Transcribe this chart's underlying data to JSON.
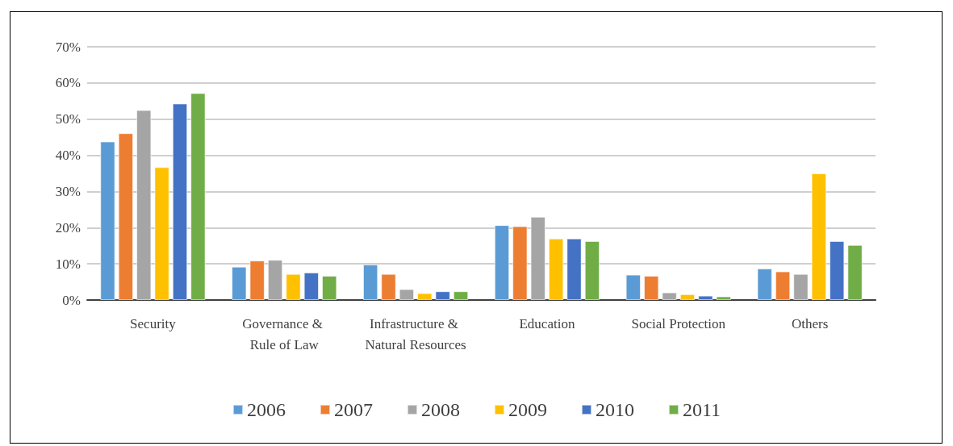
{
  "chart_data": {
    "type": "bar",
    "categories": [
      "Security",
      "Governance & Rule of Law",
      "Infrastructure & Natural Resources",
      "Education",
      "Social Protection",
      "Others"
    ],
    "series": [
      {
        "name": "2006",
        "color": "#5b9bd5",
        "values": [
          43.8,
          9.2,
          9.8,
          20.7,
          7.0,
          8.7
        ]
      },
      {
        "name": "2007",
        "color": "#ed7d31",
        "values": [
          46.1,
          10.9,
          7.2,
          20.4,
          6.7,
          7.9
        ]
      },
      {
        "name": "2008",
        "color": "#a5a5a5",
        "values": [
          52.5,
          11.1,
          3.0,
          23.0,
          2.1,
          7.2
        ]
      },
      {
        "name": "2009",
        "color": "#ffc000",
        "values": [
          36.7,
          7.2,
          1.9,
          17.0,
          1.6,
          35.0
        ]
      },
      {
        "name": "2010",
        "color": "#4472c4",
        "values": [
          54.3,
          7.6,
          2.4,
          17.0,
          1.2,
          16.3
        ]
      },
      {
        "name": "2011",
        "color": "#70ad47",
        "values": [
          57.2,
          6.7,
          2.4,
          16.3,
          1.0,
          15.2
        ]
      }
    ],
    "ylim": [
      0,
      70
    ],
    "yticks": [
      {
        "value": 0,
        "label": "0%"
      },
      {
        "value": 10,
        "label": "10%"
      },
      {
        "value": 20,
        "label": "20%"
      },
      {
        "value": 30,
        "label": "30%"
      },
      {
        "value": 40,
        "label": "40%"
      },
      {
        "value": 50,
        "label": "50%"
      },
      {
        "value": 60,
        "label": "60%"
      },
      {
        "value": 70,
        "label": "70%"
      }
    ],
    "grid": "y",
    "legend": "bottom"
  }
}
